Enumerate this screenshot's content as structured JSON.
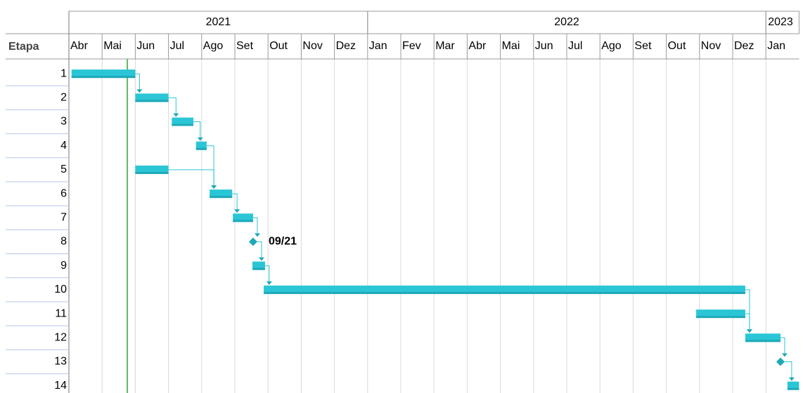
{
  "chart_data": {
    "type": "gantt",
    "row_header": "Etapa",
    "years": [
      {
        "label": "2021",
        "months": 9
      },
      {
        "label": "2022",
        "months": 12
      },
      {
        "label": "2023",
        "months": 1
      }
    ],
    "months": [
      "Abr",
      "Mai",
      "Jun",
      "Jul",
      "Ago",
      "Set",
      "Out",
      "Nov",
      "Dez",
      "Jan",
      "Fev",
      "Mar",
      "Abr",
      "Mai",
      "Jun",
      "Jul",
      "Ago",
      "Set",
      "Out",
      "Nov",
      "Dez",
      "Jan"
    ],
    "xlim": [
      0,
      22
    ],
    "color": "#2bc6d6",
    "today": 1.76,
    "today_color": "#5cb85c",
    "tasks": [
      {
        "id": 1,
        "start": 0.08,
        "end": 2.0
      },
      {
        "id": 2,
        "start": 2.0,
        "end": 3.0,
        "predecessors": [
          1
        ]
      },
      {
        "id": 3,
        "start": 3.1,
        "end": 3.75,
        "predecessors": [
          2
        ]
      },
      {
        "id": 4,
        "start": 3.83,
        "end": 4.15,
        "predecessors": [
          3
        ]
      },
      {
        "id": 5,
        "start": 2.0,
        "end": 3.0
      },
      {
        "id": 6,
        "start": 4.24,
        "end": 4.92,
        "predecessors": [
          4,
          5
        ]
      },
      {
        "id": 7,
        "start": 4.94,
        "end": 5.55,
        "predecessors": [
          6
        ]
      },
      {
        "id": 8,
        "milestone": 5.55,
        "label": "09/21",
        "predecessors": [
          7
        ]
      },
      {
        "id": 9,
        "start": 5.53,
        "end": 5.91,
        "predecessors": [
          8
        ]
      },
      {
        "id": 10,
        "start": 5.87,
        "end": 20.38,
        "predecessors": [
          9
        ]
      },
      {
        "id": 11,
        "start": 18.9,
        "end": 20.38
      },
      {
        "id": 12,
        "start": 20.38,
        "end": 21.44,
        "predecessors": [
          10,
          11
        ]
      },
      {
        "id": 13,
        "milestone": 21.44,
        "predecessors": [
          12
        ]
      },
      {
        "id": 14,
        "start": 21.65,
        "end": 22.0,
        "predecessors": [
          13
        ]
      }
    ]
  }
}
